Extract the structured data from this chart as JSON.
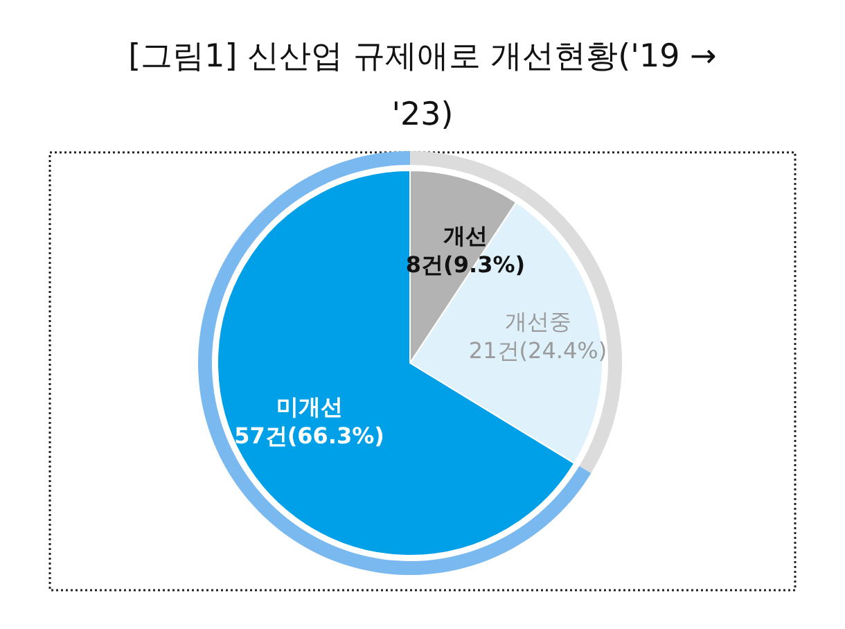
{
  "chart_data": {
    "type": "pie",
    "title": "[그림1] 신산업 규제애로 개선현황('19 → '23)",
    "categories": [
      "개선",
      "개선중",
      "미개선"
    ],
    "series": [
      {
        "values": [
          8,
          21,
          57
        ],
        "value_labels": [
          "8건(9.3%)",
          "21건(24.4%)",
          "57건(66.3%)"
        ],
        "colors": [
          "#b3b3b3",
          "#dff2fc",
          "#00a0e9"
        ]
      },
      {
        "values": [
          9.3,
          24.4,
          66.3
        ],
        "colors": [
          "#dcdcdc",
          "#dcdcdc",
          "#7ab8f0"
        ]
      }
    ]
  }
}
